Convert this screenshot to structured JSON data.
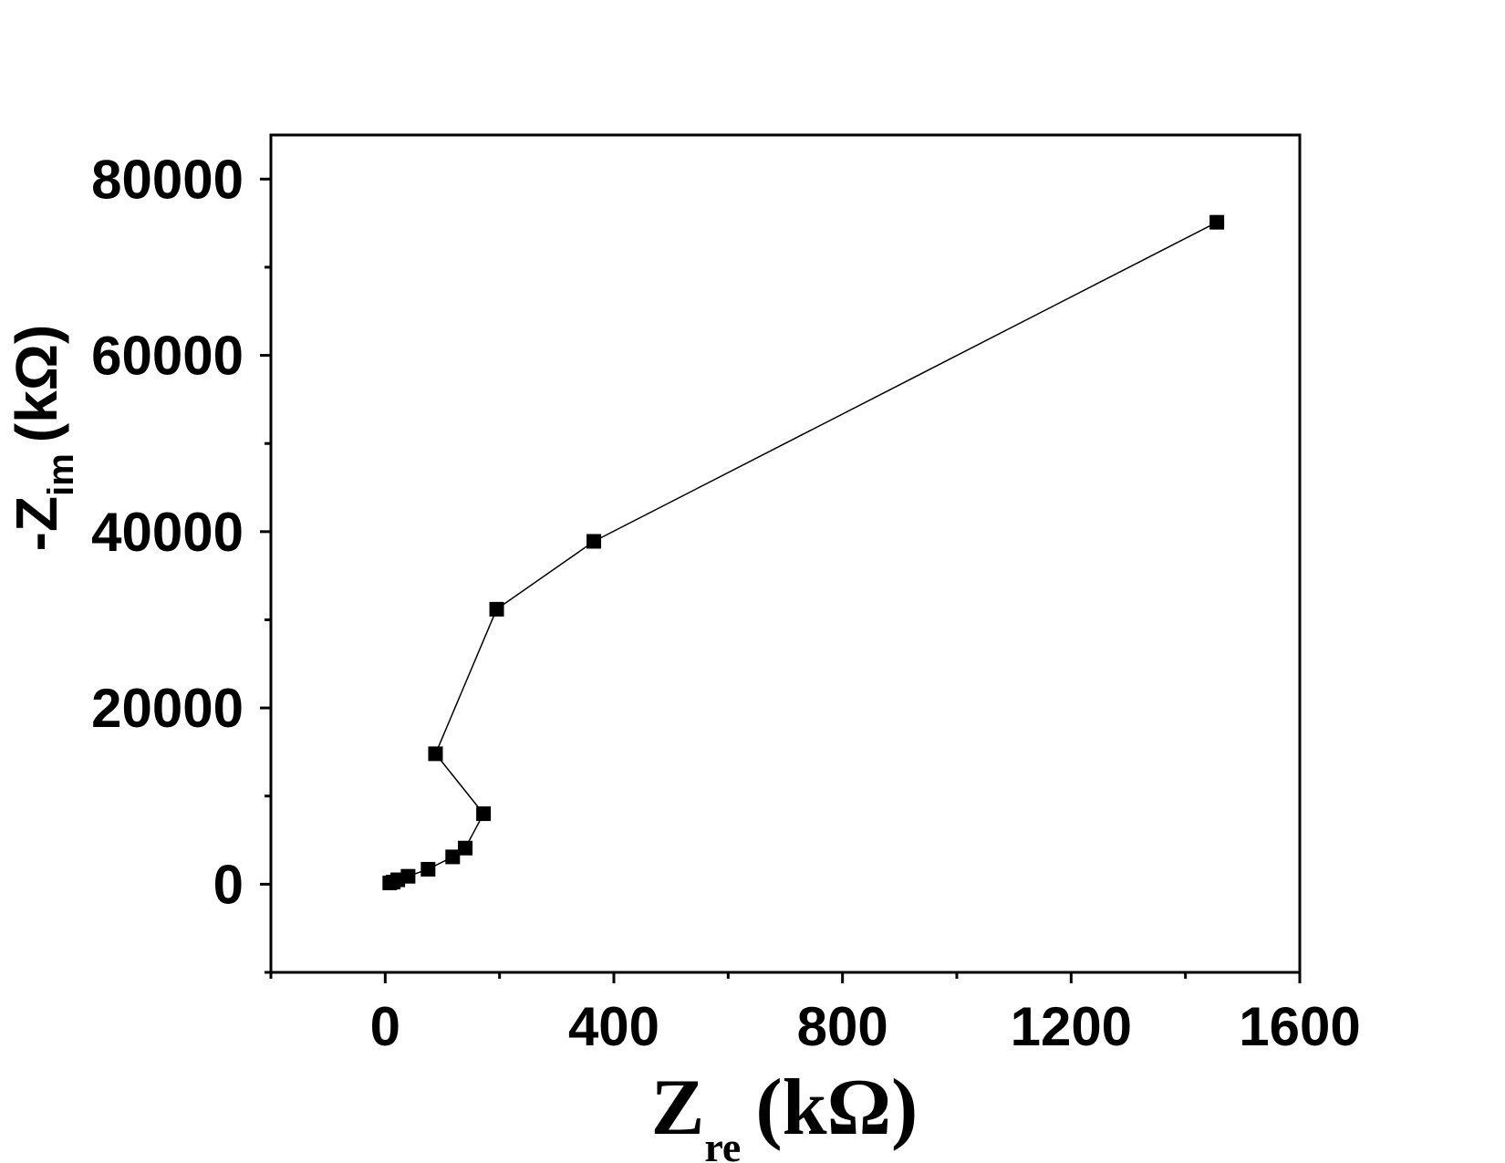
{
  "chart_data": {
    "type": "scatter",
    "connected": true,
    "marker": "square",
    "color": "#000000",
    "title": "",
    "xlabel": {
      "main": "Z",
      "sub": "re",
      "unit": "(kΩ)"
    },
    "ylabel": {
      "prefix": "-",
      "main": "Z",
      "sub": "im",
      "unit": "(kΩ)"
    },
    "xlim": [
      -200,
      1600
    ],
    "ylim": [
      -10000,
      85000
    ],
    "xticks": [
      0,
      400,
      800,
      1200,
      1600
    ],
    "yticks": [
      0,
      20000,
      40000,
      60000,
      80000
    ],
    "xtick_labels": [
      "0",
      "400",
      "800",
      "1200",
      "1600"
    ],
    "ytick_labels": [
      "0",
      "20000",
      "40000",
      "60000",
      "80000"
    ],
    "grid": false,
    "legend": "none",
    "series": [
      {
        "x": [
          8,
          14,
          22,
          40,
          75,
          118,
          140,
          172,
          88,
          195,
          365,
          1455
        ],
        "y": [
          150,
          250,
          500,
          900,
          1700,
          3100,
          4100,
          8000,
          14800,
          31200,
          38900,
          75100
        ]
      }
    ]
  }
}
